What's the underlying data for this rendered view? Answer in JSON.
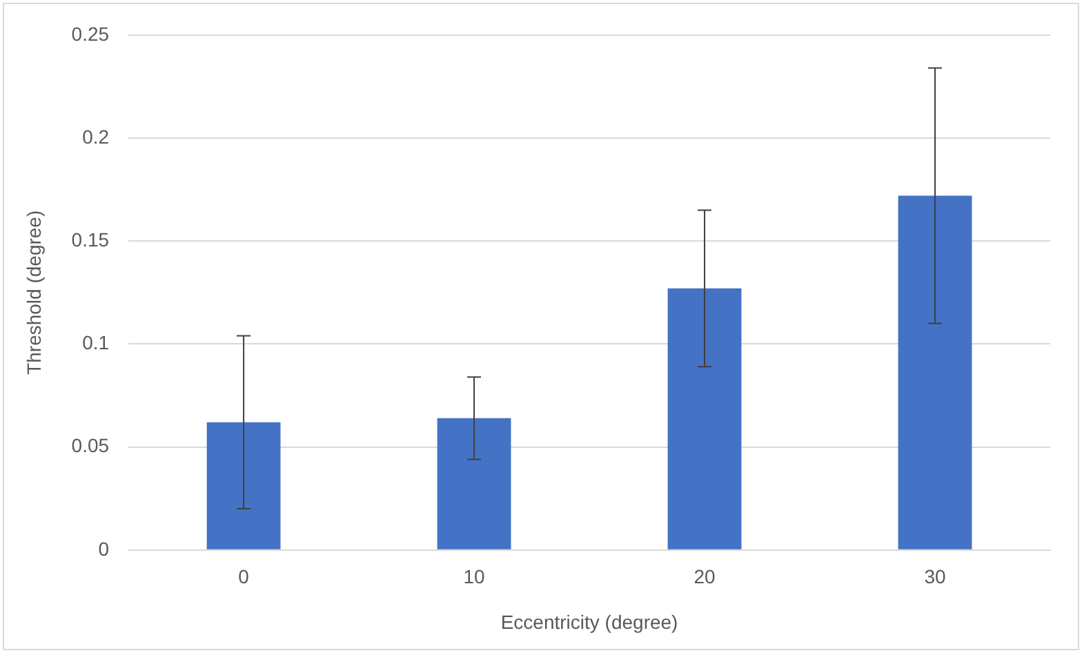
{
  "chart_data": {
    "type": "bar",
    "xlabel": "Eccentricity (degree)",
    "ylabel": "Threshold (degree)",
    "categories": [
      "0",
      "10",
      "20",
      "30"
    ],
    "values": [
      0.062,
      0.064,
      0.127,
      0.172
    ],
    "errors": [
      0.042,
      0.02,
      0.038,
      0.062
    ],
    "color": "#4472c4",
    "ylim": [
      0,
      0.25
    ],
    "yticks": [
      0,
      0.05,
      0.1,
      0.15,
      0.2,
      0.25
    ],
    "grid": "y",
    "legend": false
  }
}
